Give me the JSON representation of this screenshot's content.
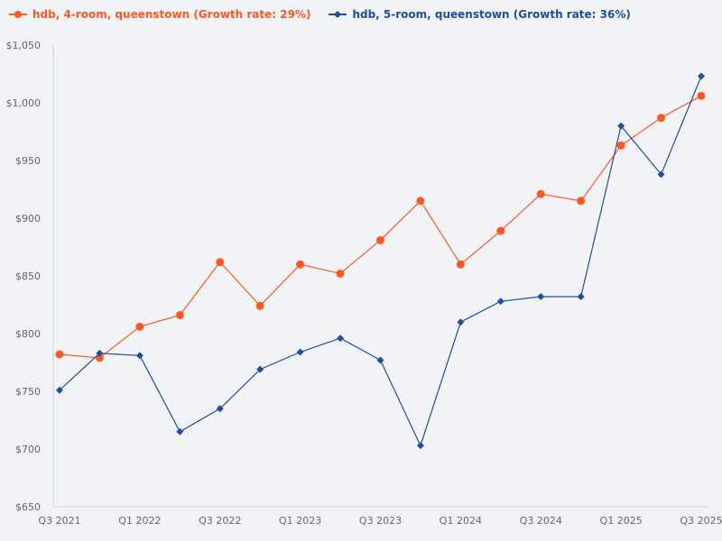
{
  "legend": {
    "items": [
      {
        "label": "hdb, 4-room, queenstown (Growth rate: 29%)",
        "color": "#ff5722",
        "marker": "circle"
      },
      {
        "label": "hdb, 5-room, queenstown (Growth rate: 36%)",
        "color": "#1f4e9c",
        "marker": "diamond"
      }
    ]
  },
  "colors": {
    "background": "#f2f3f6",
    "axis": "#c9d4e8",
    "tick_text": "#666666"
  },
  "chart_data": {
    "type": "line",
    "title": "",
    "xlabel": "",
    "ylabel": "",
    "categories": [
      "Q3 2021",
      "Q4 2021",
      "Q1 2022",
      "Q2 2022",
      "Q3 2022",
      "Q4 2022",
      "Q1 2023",
      "Q2 2023",
      "Q3 2023",
      "Q4 2023",
      "Q1 2024",
      "Q2 2024",
      "Q3 2024",
      "Q4 2024",
      "Q1 2025",
      "Q2 2025",
      "Q3 2025"
    ],
    "x_tick_labels": [
      "Q3 2021",
      "Q1 2022",
      "Q3 2022",
      "Q1 2023",
      "Q3 2023",
      "Q1 2024",
      "Q3 2024",
      "Q1 2025",
      "Q3 2025"
    ],
    "y_tick_labels": [
      "$650",
      "$700",
      "$750",
      "$800",
      "$850",
      "$900",
      "$950",
      "$1,000",
      "$1,050"
    ],
    "y_ticks": [
      650,
      700,
      750,
      800,
      850,
      900,
      950,
      1000,
      1050
    ],
    "ylim": [
      650,
      1050
    ],
    "grid": false,
    "legend_position": "top-left",
    "series": [
      {
        "name": "hdb, 4-room, queenstown (Growth rate: 29%)",
        "color": "#ff5722",
        "marker": "circle",
        "values": [
          782,
          779,
          806,
          816,
          862,
          824,
          860,
          852,
          881,
          915,
          860,
          889,
          921,
          915,
          963,
          987,
          1006
        ]
      },
      {
        "name": "hdb, 5-room, queenstown (Growth rate: 36%)",
        "color": "#1f4e9c",
        "marker": "diamond",
        "values": [
          751,
          783,
          781,
          715,
          735,
          769,
          784,
          796,
          777,
          703,
          810,
          828,
          832,
          832,
          980,
          938,
          1023
        ]
      }
    ]
  }
}
